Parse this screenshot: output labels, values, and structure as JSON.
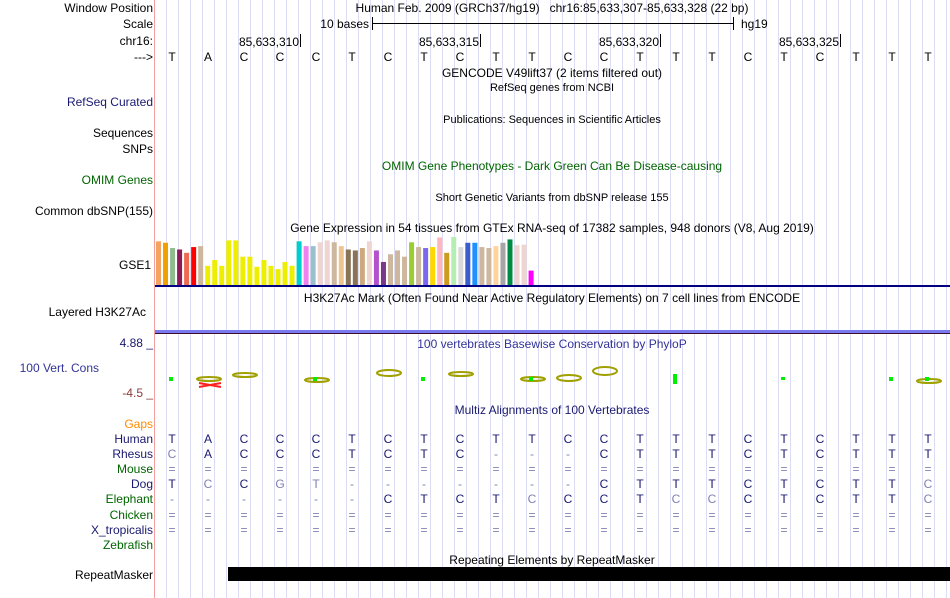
{
  "header": {
    "window_position_label": "Window Position",
    "assembly": "Human Feb. 2009 (GRCh37/hg19)",
    "position": "chr16:85,633,307-85,633,328 (22 bp)",
    "scale_label": "Scale",
    "scale_text": "10 bases",
    "scale_db": "hg19",
    "chrom_label": "chr16:",
    "coords": [
      "85,633,310",
      "85,633,315",
      "85,633,320",
      "85,633,325"
    ],
    "strand_label": "--->",
    "sequence": [
      "T",
      "A",
      "C",
      "C",
      "C",
      "T",
      "C",
      "T",
      "C",
      "T",
      "T",
      "C",
      "C",
      "T",
      "T",
      "T",
      "C",
      "T",
      "C",
      "T",
      "T",
      "T"
    ]
  },
  "tracks": {
    "gencode_title": "GENCODE V49lift37 (2 items filtered out)",
    "refseq_title": "RefSeq genes from NCBI",
    "refseq_label": "RefSeq Curated",
    "pubs_title": "Publications: Sequences in Scientific Articles",
    "pubs_label": "Sequences",
    "snps_label": "SNPs",
    "omim_title": "OMIM Gene Phenotypes - Dark Green Can Be Disease-causing",
    "omim_label": "OMIM Genes",
    "dbsnp_title": "Short Genetic Variants from dbSNP release 155",
    "dbsnp_label": "Common dbSNP(155)",
    "gtex_title": "Gene Expression in 54 tissues from GTEx RNA-seq of 17382 samples, 948 donors (V8, Aug 2019)",
    "gtex_label": "GSE1",
    "h3k27_title": "H3K27Ac Mark (Often Found Near Active Regulatory Elements) on 7 cell lines from ENCODE",
    "h3k27_label": "Layered H3K27Ac",
    "cons_title": "100 vertebrates Basewise Conservation by PhyloP",
    "cons_label": "100 Vert. Cons",
    "cons_max": "4.88 _",
    "cons_min": "-4.5 _",
    "multiz_title": "Multiz Alignments of 100 Vertebrates",
    "gaps_label": "Gaps",
    "rmsk_title": "Repeating Elements by RepeatMasker",
    "rmsk_label": "RepeatMasker"
  },
  "gtex": {
    "relative_levels": [
      0.91,
      0.88,
      0.77,
      0.74,
      0.67,
      0.79,
      0.81,
      0.4,
      0.52,
      0.4,
      0.93,
      0.93,
      0.59,
      0.59,
      0.38,
      0.52,
      0.4,
      0.33,
      0.48,
      0.4,
      0.91,
      0.81,
      0.81,
      0.89,
      0.93,
      0.89,
      0.81,
      0.74,
      0.72,
      0.77,
      0.91,
      0.72,
      0.48,
      0.64,
      0.72,
      0.59,
      0.89,
      0.79,
      0.77,
      0.79,
      0.99,
      0.67,
      1.0,
      0.79,
      0.88,
      0.88,
      0.79,
      0.77,
      0.81,
      0.88,
      0.95,
      0.83,
      0.84,
      0.3
    ],
    "colors": [
      "#f4a460",
      "#f0a000",
      "#8fbc8f",
      "#8b1a55",
      "#ee6a50",
      "#ff0000",
      "#cdb79e",
      "#eeee00",
      "#eeee00",
      "#eeee00",
      "#eeee00",
      "#eeee00",
      "#eeee00",
      "#eeee00",
      "#eeee00",
      "#eeee00",
      "#eeee00",
      "#eeee00",
      "#eeee00",
      "#eeee00",
      "#00cdcd",
      "#ee82ee",
      "#9ac0cd",
      "#eed5d2",
      "#eed5d2",
      "#cdb79e",
      "#eec591",
      "#8b7355",
      "#8b7355",
      "#cdaa7d",
      "#eed5d2",
      "#b452cd",
      "#7a378b",
      "#cdb79e",
      "#cdb79e",
      "#cdb79e",
      "#9acd32",
      "#cdb79e",
      "#7b68ee",
      "#ffd700",
      "#ffb6c1",
      "#cd9b1d",
      "#b4eeb4",
      "#d9d9d9",
      "#3a5fcd",
      "#1e90ff",
      "#cdb79e",
      "#cdb79e",
      "#ffd39b",
      "#a6a6a6",
      "#008b45",
      "#eed5d2",
      "#eed5d2",
      "#ff00ff"
    ]
  },
  "alignment": [
    {
      "species": "Human",
      "color": "#191970",
      "bases": "TACCCTCTCTTCCTTTCTCTTT",
      "dim": ""
    },
    {
      "species": "Rhesus",
      "color": "#191970",
      "bases": "CACCCTCTC---CTTTCTCTTT",
      "dim": "0"
    },
    {
      "species": "Mouse",
      "color": "#006400",
      "bases": "======================",
      "dim": ""
    },
    {
      "species": "Dog",
      "color": "#191970",
      "bases": "TCCGT-------CTTTCTCTTC",
      "dim": "1,3,4,21"
    },
    {
      "species": "Elephant",
      "color": "#006400",
      "bases": "------CTCTCCCTCCCTCTTC",
      "dim": "10,14,15,21"
    },
    {
      "species": "Chicken",
      "color": "#006400",
      "bases": "======================",
      "dim": ""
    },
    {
      "species": "X_tropicalis",
      "color": "#191970",
      "bases": "======================",
      "dim": ""
    },
    {
      "species": "Zebrafish",
      "color": "#006400",
      "bases": "                      ",
      "dim": ""
    }
  ],
  "colors": {
    "gaps": "#ff8c00",
    "navy": "#191970",
    "green": "#006400",
    "cons": "#333399",
    "min": "#8b3a3a"
  }
}
